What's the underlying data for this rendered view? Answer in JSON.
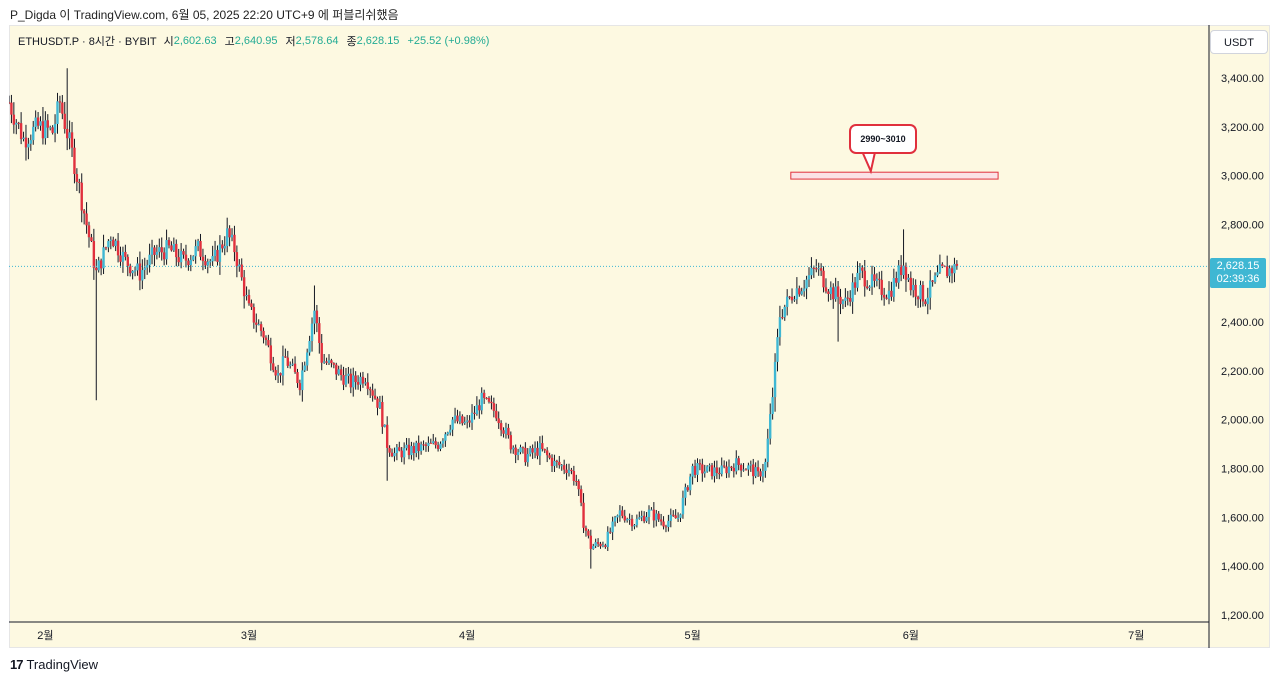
{
  "caption": "P_Digda 이 TradingView.com, 6월 05, 2025 22:20 UTC+9 에 퍼블리쉬했음",
  "legend": {
    "symbol": "ETHUSDT.P · 8시간 · BYBIT",
    "open_label": "시",
    "open": "2,602.63",
    "high_label": "고",
    "high": "2,640.95",
    "low_label": "저",
    "low": "2,578.64",
    "close_label": "종",
    "close": "2,628.15",
    "change": "+25.52 (+0.98%)"
  },
  "currency_button": "USDT",
  "last_price": {
    "value": "2,628.15",
    "countdown": "02:39:36"
  },
  "annotation": {
    "label": "2990~3010",
    "low": 2990,
    "high": 3010
  },
  "brand": {
    "logo": "17",
    "name": "TradingView"
  },
  "colors": {
    "up": "#3fb7d3",
    "down": "#e0303d",
    "wick": "#131722",
    "background": "#fdf9e1",
    "grid_line": "#d0d0d0",
    "price_line": "#3fb7d3"
  },
  "chart_data": {
    "type": "candlestick",
    "title": "ETHUSDT.P · 8시간 · BYBIT",
    "ylim": [
      1150,
      3550
    ],
    "y_ticks": [
      "1,200.00",
      "1,400.00",
      "1,600.00",
      "1,800.00",
      "2,000.00",
      "2,200.00",
      "2,400.00",
      "2,600.00",
      "2,800.00",
      "3,000.00",
      "3,200.00",
      "3,400.00"
    ],
    "y_tick_values": [
      1200,
      1400,
      1600,
      1800,
      2000,
      2200,
      2400,
      2600,
      2800,
      3000,
      3200,
      3400
    ],
    "x_ticks": [
      "2월",
      "3월",
      "4월",
      "5월",
      "6월",
      "7월"
    ],
    "x_tick_days": [
      1,
      29,
      59,
      90,
      120,
      151
    ],
    "x_start_day": -4,
    "x_end_day": 161,
    "last_day": 126.5,
    "current_price": 2628.15,
    "anchors": [
      [
        -4,
        3300
      ],
      [
        -2,
        3150
      ],
      [
        0,
        3200
      ],
      [
        2,
        3180
      ],
      [
        3,
        3300
      ],
      [
        5,
        3050
      ],
      [
        7,
        2750
      ],
      [
        8,
        2600
      ],
      [
        10,
        2760
      ],
      [
        12,
        2650
      ],
      [
        14,
        2600
      ],
      [
        16,
        2680
      ],
      [
        18,
        2700
      ],
      [
        20,
        2650
      ],
      [
        22,
        2700
      ],
      [
        24,
        2640
      ],
      [
        26,
        2760
      ],
      [
        27,
        2700
      ],
      [
        29,
        2450
      ],
      [
        31,
        2350
      ],
      [
        33,
        2180
      ],
      [
        34,
        2250
      ],
      [
        36,
        2150
      ],
      [
        38,
        2450
      ],
      [
        39,
        2250
      ],
      [
        41,
        2200
      ],
      [
        43,
        2150
      ],
      [
        45,
        2180
      ],
      [
        47,
        2050
      ],
      [
        48,
        1900
      ],
      [
        49,
        1860
      ],
      [
        52,
        1880
      ],
      [
        55,
        1900
      ],
      [
        57,
        2000
      ],
      [
        59,
        1980
      ],
      [
        61,
        2080
      ],
      [
        63,
        2030
      ],
      [
        65,
        1900
      ],
      [
        67,
        1850
      ],
      [
        69,
        1880
      ],
      [
        71,
        1820
      ],
      [
        73,
        1800
      ],
      [
        74,
        1750
      ],
      [
        75,
        1580
      ],
      [
        76,
        1480
      ],
      [
        78,
        1500
      ],
      [
        80,
        1620
      ],
      [
        82,
        1580
      ],
      [
        84,
        1620
      ],
      [
        86,
        1580
      ],
      [
        88,
        1600
      ],
      [
        90,
        1800
      ],
      [
        92,
        1790
      ],
      [
        94,
        1790
      ],
      [
        96,
        1820
      ],
      [
        98,
        1800
      ],
      [
        99,
        1770
      ],
      [
        100,
        1820
      ],
      [
        101,
        2100
      ],
      [
        102,
        2430
      ],
      [
        104,
        2530
      ],
      [
        105,
        2550
      ],
      [
        107,
        2620
      ],
      [
        109,
        2530
      ],
      [
        111,
        2480
      ],
      [
        113,
        2600
      ],
      [
        115,
        2550
      ],
      [
        117,
        2520
      ],
      [
        119,
        2640
      ],
      [
        120,
        2550
      ],
      [
        122,
        2500
      ],
      [
        124,
        2600
      ],
      [
        125,
        2610
      ],
      [
        126.5,
        2628.15
      ]
    ],
    "spikes": [
      {
        "day": 4,
        "value": 3440
      },
      {
        "day": 8,
        "value": 2080
      },
      {
        "day": 38,
        "value": 2550
      },
      {
        "day": 48,
        "value": 1750
      },
      {
        "day": 76,
        "value": 1390
      },
      {
        "day": 110,
        "value": 2320
      },
      {
        "day": 119,
        "value": 2780
      }
    ]
  }
}
